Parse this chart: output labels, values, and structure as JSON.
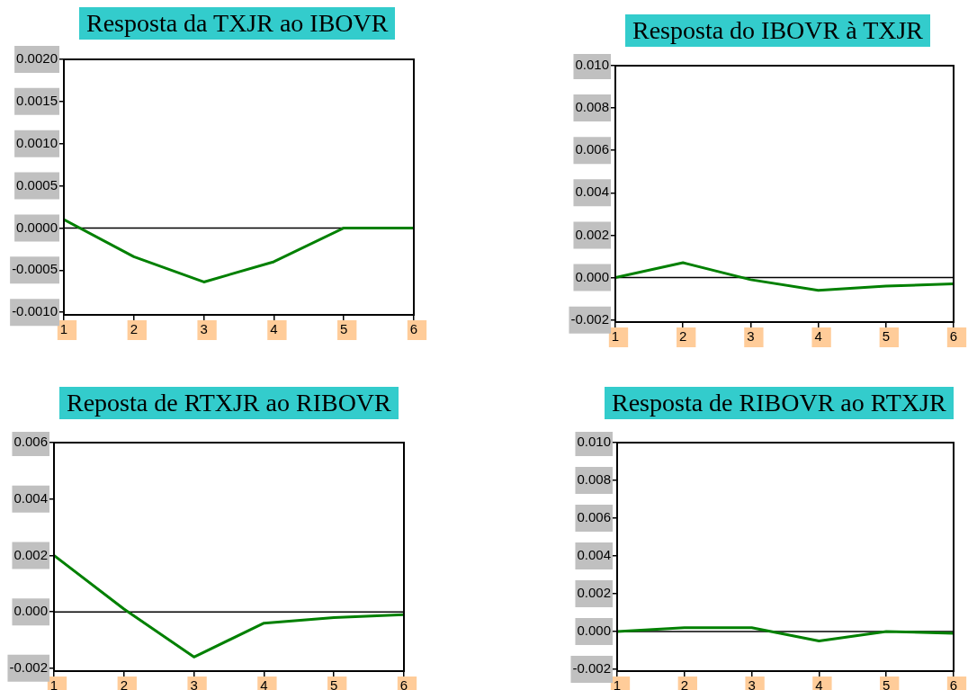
{
  "chart_data": [
    {
      "type": "line",
      "title": "Resposta da TXJR ao IBOVR",
      "x": [
        1,
        2,
        3,
        4,
        5,
        6
      ],
      "xlim": [
        1,
        6
      ],
      "xticks": [
        1,
        2,
        3,
        4,
        5,
        6
      ],
      "ylim": [
        -0.00103,
        0.002
      ],
      "yticks": [
        {
          "value": -0.001,
          "label": "-0.0010"
        },
        {
          "value": -0.0005,
          "label": "-0.0005"
        },
        {
          "value": 0,
          "label": "0.0000"
        },
        {
          "value": 0.0005,
          "label": "0.0005"
        },
        {
          "value": 0.001,
          "label": "0.0010"
        },
        {
          "value": 0.0015,
          "label": "0.0015"
        },
        {
          "value": 0.002,
          "label": "0.0020"
        }
      ],
      "series": [
        {
          "color": "#008000",
          "values": [
            0.0001,
            -0.00034,
            -0.00064,
            -0.0004,
            0,
            0
          ]
        }
      ],
      "ref_lines": [
        {
          "axis": "y",
          "value": 0,
          "color": "#000000"
        }
      ],
      "grid": false,
      "legend": false,
      "marker": "none"
    },
    {
      "type": "line",
      "title": "Resposta do IBOVR à TXJR",
      "x": [
        1,
        2,
        3,
        4,
        5,
        6
      ],
      "xlim": [
        1,
        6
      ],
      "xticks": [
        1,
        2,
        3,
        4,
        5,
        6
      ],
      "ylim": [
        -0.0021,
        0.01
      ],
      "yticks": [
        {
          "value": -0.002,
          "label": "-0.002"
        },
        {
          "value": 0,
          "label": "0.000"
        },
        {
          "value": 0.002,
          "label": "0.002"
        },
        {
          "value": 0.004,
          "label": "0.004"
        },
        {
          "value": 0.006,
          "label": "0.006"
        },
        {
          "value": 0.008,
          "label": "0.008"
        },
        {
          "value": 0.01,
          "label": "0.010"
        }
      ],
      "series": [
        {
          "color": "#008000",
          "values": [
            0,
            0.0007,
            -0.0001,
            -0.0006,
            -0.0004,
            -0.0003
          ]
        }
      ],
      "ref_lines": [
        {
          "axis": "y",
          "value": 0,
          "color": "#000000"
        }
      ],
      "grid": false,
      "legend": false,
      "marker": "none"
    },
    {
      "type": "line",
      "title": "Reposta de RTXJR ao RIBOVR",
      "x": [
        1,
        2,
        3,
        4,
        5,
        6
      ],
      "xlim": [
        1,
        6
      ],
      "xticks": [
        1,
        2,
        3,
        4,
        5,
        6
      ],
      "ylim": [
        -0.0021,
        0.006
      ],
      "yticks": [
        {
          "value": -0.002,
          "label": "-0.002"
        },
        {
          "value": 0,
          "label": "0.000"
        },
        {
          "value": 0.002,
          "label": "0.002"
        },
        {
          "value": 0.004,
          "label": "0.004"
        },
        {
          "value": 0.006,
          "label": "0.006"
        }
      ],
      "series": [
        {
          "color": "#008000",
          "values": [
            0.002,
            0.0001,
            -0.0016,
            -0.0004,
            -0.0002,
            -0.0001
          ]
        }
      ],
      "ref_lines": [
        {
          "axis": "y",
          "value": 0,
          "color": "#000000"
        }
      ],
      "grid": false,
      "legend": false,
      "marker": "none"
    },
    {
      "type": "line",
      "title": "Resposta de RIBOVR ao RTXJR",
      "x": [
        1,
        2,
        3,
        4,
        5,
        6
      ],
      "xlim": [
        1,
        6
      ],
      "xticks": [
        1,
        2,
        3,
        4,
        5,
        6
      ],
      "ylim": [
        -0.0021,
        0.01
      ],
      "yticks": [
        {
          "value": -0.002,
          "label": "-0.002"
        },
        {
          "value": 0,
          "label": "0.000"
        },
        {
          "value": 0.002,
          "label": "0.002"
        },
        {
          "value": 0.004,
          "label": "0.004"
        },
        {
          "value": 0.006,
          "label": "0.006"
        },
        {
          "value": 0.008,
          "label": "0.008"
        },
        {
          "value": 0.01,
          "label": "0.010"
        }
      ],
      "series": [
        {
          "color": "#008000",
          "values": [
            0,
            0.0002,
            0.0002,
            -0.0005,
            0,
            -0.0001
          ]
        }
      ],
      "ref_lines": [
        {
          "axis": "y",
          "value": 0,
          "color": "#000000"
        }
      ],
      "grid": false,
      "legend": false,
      "marker": "none"
    }
  ]
}
